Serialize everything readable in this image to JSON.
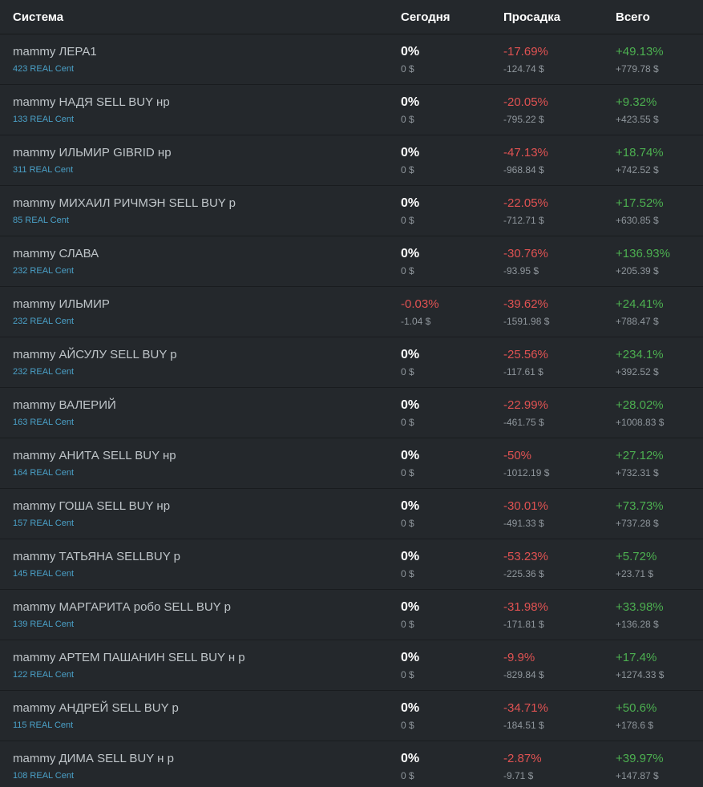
{
  "header": {
    "columns": [
      "Система",
      "Сегодня",
      "Просадка",
      "Всего"
    ]
  },
  "colors": {
    "background": "#24282c",
    "row_separator": "#191c1f",
    "header_text": "#ffffff",
    "system_name": "#bfc5c9",
    "account_link": "#4aa0c7",
    "negative": "#e05252",
    "positive": "#4caf50",
    "muted_amount": "#8f969c"
  },
  "rows": [
    {
      "name": "mammy ЛЕРА1",
      "account": "423 REAL Cent",
      "today_pct": "0%",
      "today_usd": "0 $",
      "drawdown_pct": "-17.69%",
      "drawdown_usd": "-124.74 $",
      "total_pct": "+49.13%",
      "total_usd": "+779.78 $"
    },
    {
      "name": "mammy НАДЯ SELL BUY нр",
      "account": "133 REAL Cent",
      "today_pct": "0%",
      "today_usd": "0 $",
      "drawdown_pct": "-20.05%",
      "drawdown_usd": "-795.22 $",
      "total_pct": "+9.32%",
      "total_usd": "+423.55 $"
    },
    {
      "name": "mammy ИЛЬМИР GIBRID нр",
      "account": "311 REAL Cent",
      "today_pct": "0%",
      "today_usd": "0 $",
      "drawdown_pct": "-47.13%",
      "drawdown_usd": "-968.84 $",
      "total_pct": "+18.74%",
      "total_usd": "+742.52 $"
    },
    {
      "name": "mammy МИХАИЛ РИЧМЭН SELL BUY р",
      "account": "85 REAL Cent",
      "today_pct": "0%",
      "today_usd": "0 $",
      "drawdown_pct": "-22.05%",
      "drawdown_usd": "-712.71 $",
      "total_pct": "+17.52%",
      "total_usd": "+630.85 $"
    },
    {
      "name": "mammy СЛАВА",
      "account": "232 REAL Cent",
      "today_pct": "0%",
      "today_usd": "0 $",
      "drawdown_pct": "-30.76%",
      "drawdown_usd": "-93.95 $",
      "total_pct": "+136.93%",
      "total_usd": "+205.39 $"
    },
    {
      "name": "mammy ИЛЬМИР",
      "account": "232 REAL Cent",
      "today_pct": "-0.03%",
      "today_usd": "-1.04 $",
      "drawdown_pct": "-39.62%",
      "drawdown_usd": "-1591.98 $",
      "total_pct": "+24.41%",
      "total_usd": "+788.47 $"
    },
    {
      "name": "mammy АЙСУЛУ SELL BUY р",
      "account": "232 REAL Cent",
      "today_pct": "0%",
      "today_usd": "0 $",
      "drawdown_pct": "-25.56%",
      "drawdown_usd": "-117.61 $",
      "total_pct": "+234.1%",
      "total_usd": "+392.52 $"
    },
    {
      "name": "mammy ВАЛЕРИЙ",
      "account": "163 REAL Cent",
      "today_pct": "0%",
      "today_usd": "0 $",
      "drawdown_pct": "-22.99%",
      "drawdown_usd": "-461.75 $",
      "total_pct": "+28.02%",
      "total_usd": "+1008.83 $"
    },
    {
      "name": "mammy АНИТА SELL BUY нр",
      "account": "164 REAL Cent",
      "today_pct": "0%",
      "today_usd": "0 $",
      "drawdown_pct": "-50%",
      "drawdown_usd": "-1012.19 $",
      "total_pct": "+27.12%",
      "total_usd": "+732.31 $"
    },
    {
      "name": "mammy ГОША SELL BUY нр",
      "account": "157 REAL Cent",
      "today_pct": "0%",
      "today_usd": "0 $",
      "drawdown_pct": "-30.01%",
      "drawdown_usd": "-491.33 $",
      "total_pct": "+73.73%",
      "total_usd": "+737.28 $"
    },
    {
      "name": "mammy ТАТЬЯНА SELLBUY р",
      "account": "145 REAL Cent",
      "today_pct": "0%",
      "today_usd": "0 $",
      "drawdown_pct": "-53.23%",
      "drawdown_usd": "-225.36 $",
      "total_pct": "+5.72%",
      "total_usd": "+23.71 $"
    },
    {
      "name": "mammy МАРГАРИТА робо SELL BUY р",
      "account": "139 REAL Cent",
      "today_pct": "0%",
      "today_usd": "0 $",
      "drawdown_pct": "-31.98%",
      "drawdown_usd": "-171.81 $",
      "total_pct": "+33.98%",
      "total_usd": "+136.28 $"
    },
    {
      "name": "mammy АРТЕМ ПАШАНИН SELL BUY н р",
      "account": "122 REAL Cent",
      "today_pct": "0%",
      "today_usd": "0 $",
      "drawdown_pct": "-9.9%",
      "drawdown_usd": "-829.84 $",
      "total_pct": "+17.4%",
      "total_usd": "+1274.33 $"
    },
    {
      "name": "mammy АНДРЕЙ SELL BUY р",
      "account": "115 REAL Cent",
      "today_pct": "0%",
      "today_usd": "0 $",
      "drawdown_pct": "-34.71%",
      "drawdown_usd": "-184.51 $",
      "total_pct": "+50.6%",
      "total_usd": "+178.6 $"
    },
    {
      "name": "mammy ДИМА SELL BUY н р",
      "account": "108 REAL Cent",
      "today_pct": "0%",
      "today_usd": "0 $",
      "drawdown_pct": "-2.87%",
      "drawdown_usd": "-9.71 $",
      "total_pct": "+39.97%",
      "total_usd": "+147.87 $"
    }
  ]
}
